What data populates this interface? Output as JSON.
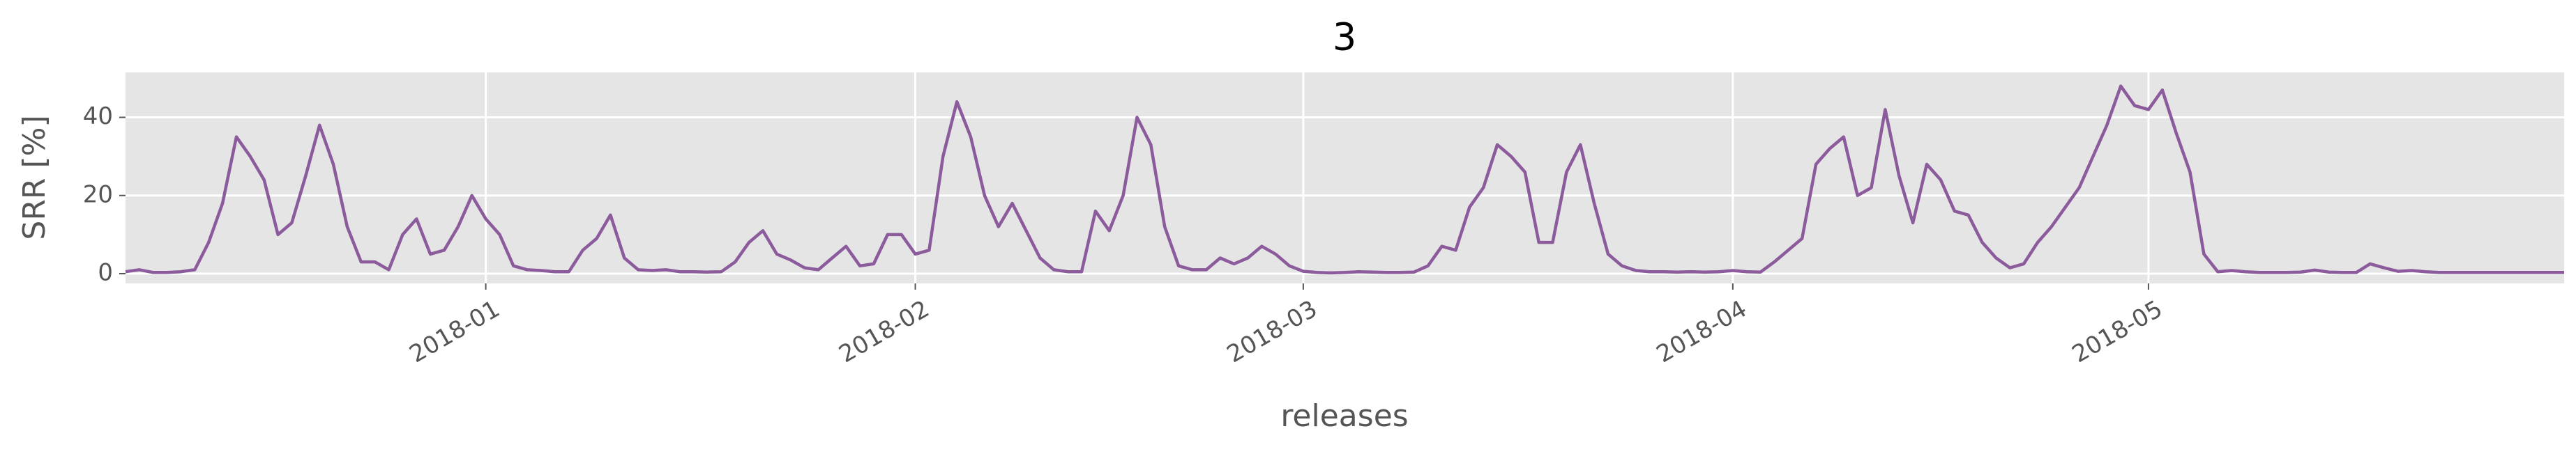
{
  "chart_data": {
    "type": "line",
    "title": "3",
    "xlabel": "releases",
    "ylabel": "SRR [%]",
    "categories": [
      null,
      null,
      null,
      null,
      null,
      null,
      null,
      null,
      null,
      null,
      null,
      null,
      null,
      null,
      null,
      null,
      null,
      null,
      null,
      null,
      null,
      null,
      null,
      null,
      null,
      null,
      "2018-01",
      null,
      null,
      null,
      null,
      null,
      null,
      null,
      null,
      null,
      null,
      null,
      null,
      null,
      null,
      null,
      null,
      null,
      null,
      null,
      null,
      null,
      null,
      null,
      null,
      null,
      null,
      null,
      null,
      null,
      null,
      "2018-02",
      null,
      null,
      null,
      null,
      null,
      null,
      null,
      null,
      null,
      null,
      null,
      null,
      null,
      null,
      null,
      null,
      null,
      null,
      null,
      null,
      null,
      null,
      null,
      null,
      null,
      null,
      null,
      "2018-03",
      null,
      null,
      null,
      null,
      null,
      null,
      null,
      null,
      null,
      null,
      null,
      null,
      null,
      null,
      null,
      null,
      null,
      null,
      null,
      null,
      null,
      null,
      null,
      null,
      null,
      null,
      null,
      null,
      null,
      null,
      "2018-04",
      null,
      null,
      null,
      null,
      null,
      null,
      null,
      null,
      null,
      null,
      null,
      null,
      null,
      null,
      null,
      null,
      null,
      null,
      null,
      null,
      null,
      null,
      null,
      null,
      null,
      null,
      null,
      null,
      null,
      "2018-05",
      null,
      null,
      null,
      null,
      null,
      null,
      null,
      null,
      null,
      null,
      null,
      null,
      null,
      null,
      null,
      null,
      null,
      null,
      null,
      null,
      null,
      null,
      null,
      null,
      null,
      null,
      null,
      null,
      null,
      null
    ],
    "values": [
      0.5,
      1,
      0.3,
      0.3,
      0.5,
      1,
      8,
      18,
      35,
      30,
      24,
      10,
      13,
      25,
      38,
      28,
      12,
      3,
      3,
      1,
      10,
      14,
      5,
      6,
      12,
      20,
      14,
      10,
      2,
      1,
      0.8,
      0.5,
      0.5,
      6,
      9,
      15,
      4,
      1,
      0.8,
      1,
      0.5,
      0.5,
      0.4,
      0.5,
      3,
      8,
      11,
      5,
      3.5,
      1.5,
      1,
      4,
      7,
      2,
      2.5,
      10,
      10,
      5,
      6,
      30,
      44,
      35,
      20,
      12,
      18,
      11,
      4,
      1,
      0.5,
      0.5,
      16,
      11,
      20,
      40,
      33,
      12,
      2,
      1,
      1,
      4,
      2.5,
      4,
      7,
      5,
      2,
      0.6,
      0.3,
      0.2,
      0.3,
      0.5,
      0.4,
      0.3,
      0.3,
      0.4,
      2,
      7,
      6,
      17,
      22,
      33,
      30,
      26,
      8,
      8,
      26,
      33,
      18,
      5,
      2,
      0.8,
      0.5,
      0.5,
      0.4,
      0.5,
      0.4,
      0.5,
      0.8,
      0.5,
      0.4,
      3,
      6,
      9,
      28,
      32,
      35,
      20,
      22,
      42,
      25,
      13,
      28,
      24,
      16,
      15,
      8,
      4,
      1.5,
      2.5,
      8,
      12,
      17,
      22,
      30,
      38,
      48,
      43,
      42,
      47,
      36,
      26,
      5,
      0.5,
      0.8,
      0.5,
      0.3,
      0.3,
      0.3,
      0.4,
      0.9,
      0.4,
      0.3,
      0.3,
      2.5,
      1.5,
      0.6,
      0.8,
      0.5,
      0.3,
      0.3,
      0.3,
      0.3,
      0.3,
      0.3,
      0.3,
      0.3,
      0.3,
      0.3
    ],
    "color": "#8b5b9c",
    "ylim": [
      -2.5,
      51.5
    ],
    "yticks": [
      0,
      20,
      40
    ],
    "grid": true
  }
}
